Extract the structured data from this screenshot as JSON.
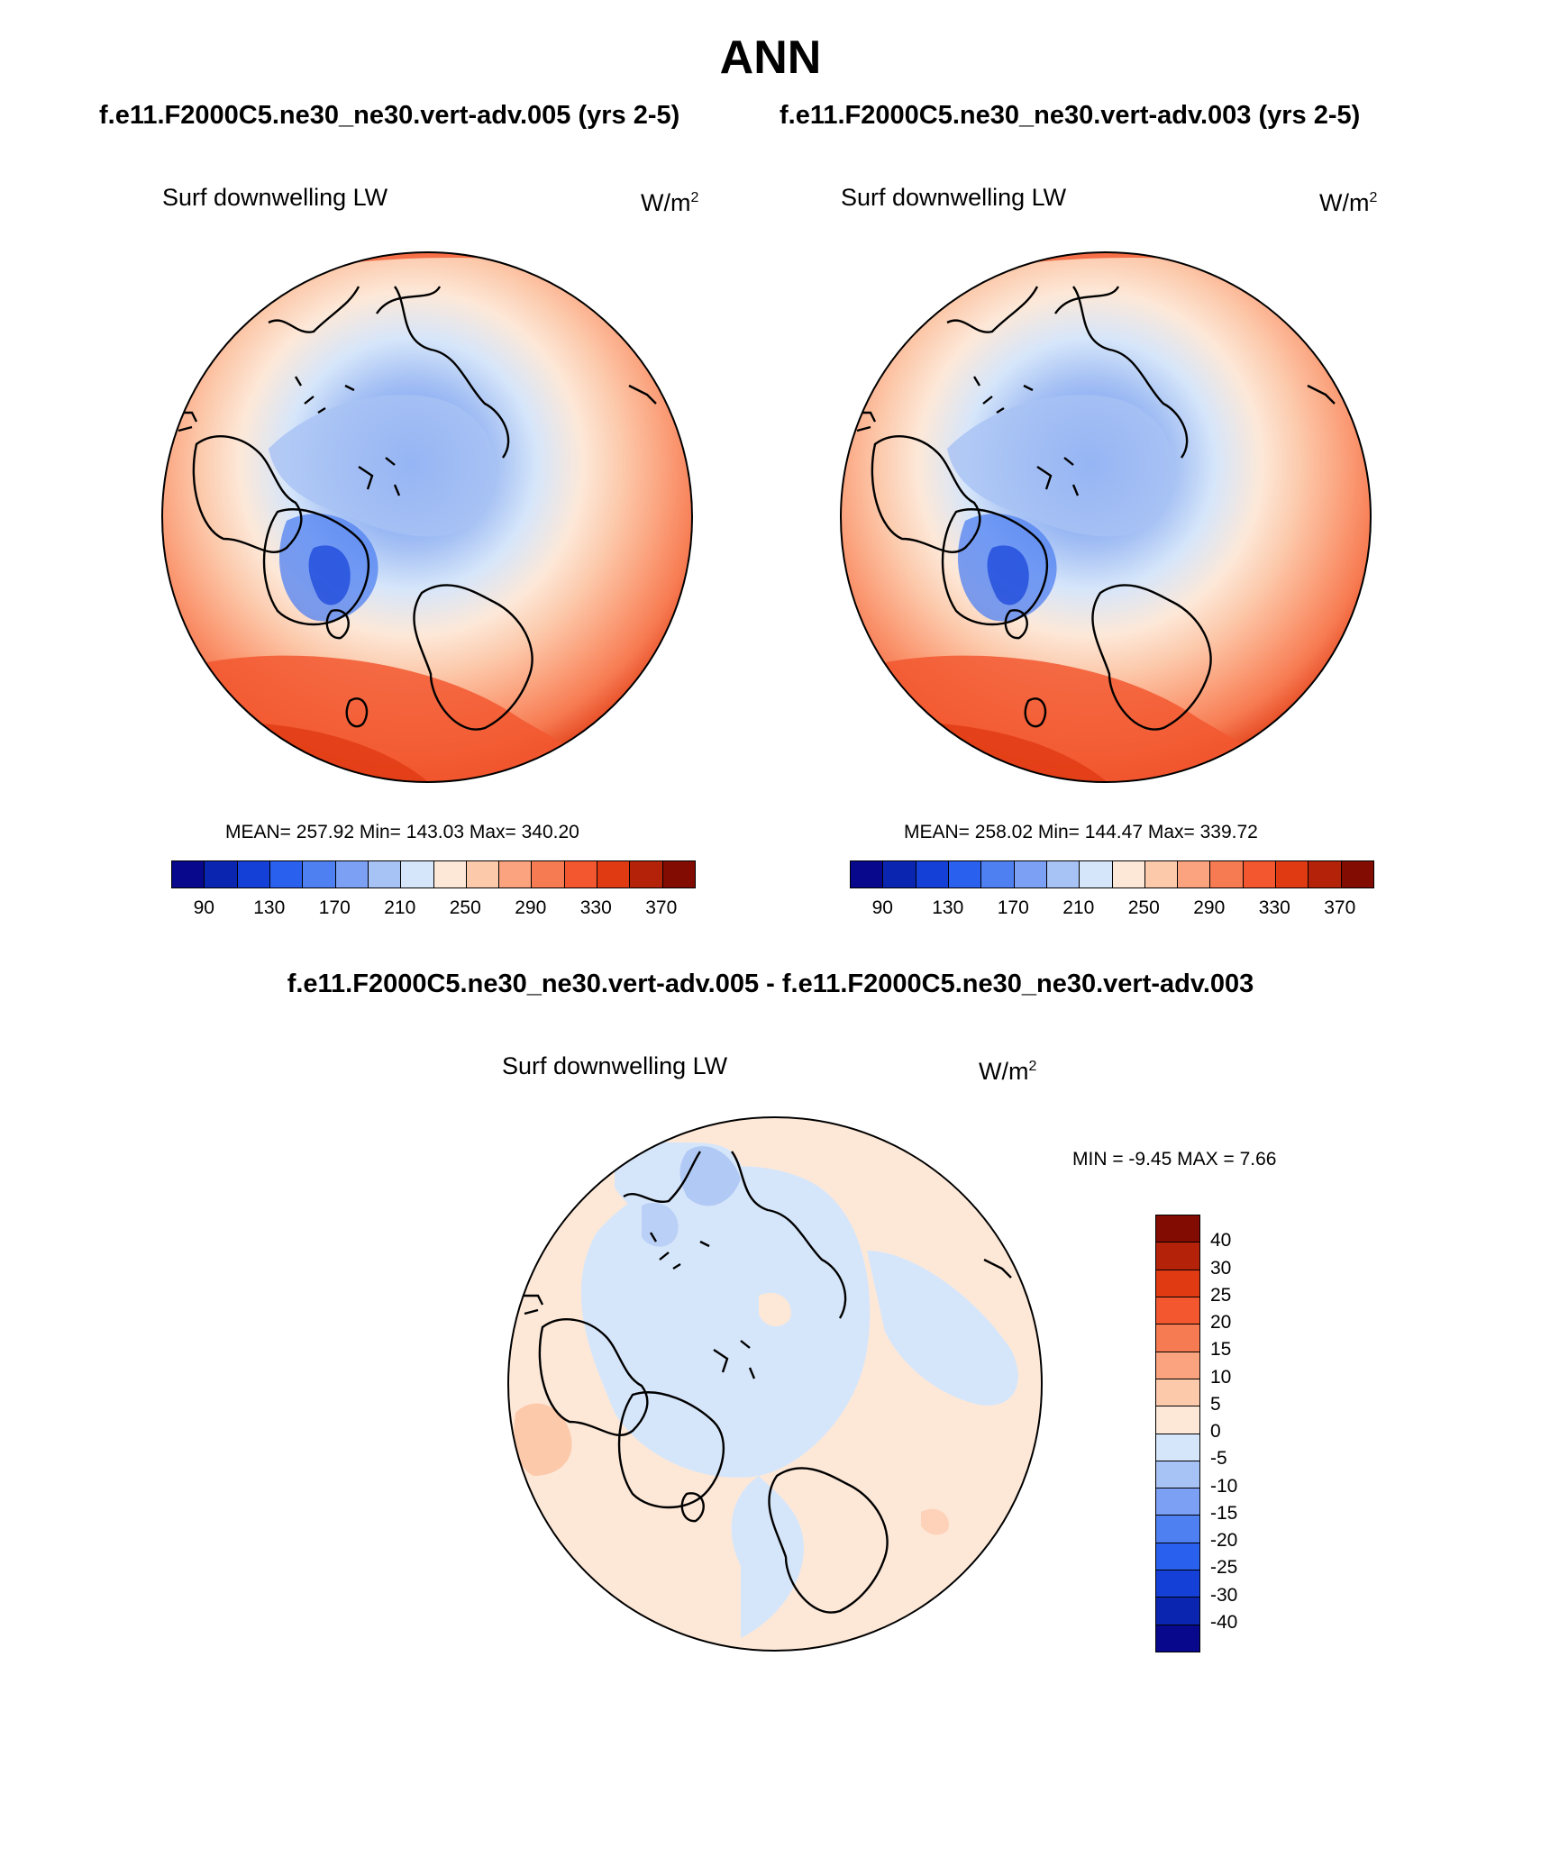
{
  "title": "ANN",
  "case_titles": [
    "f.e11.F2000C5.ne30_ne30.vert-adv.005 (yrs 2-5)",
    "f.e11.F2000C5.ne30_ne30.vert-adv.003 (yrs 2-5)"
  ],
  "diff_title": "f.e11.F2000C5.ne30_ne30.vert-adv.005 - f.e11.F2000C5.ne30_ne30.vert-adv.003",
  "panels": [
    {
      "variable": "Surf downwelling LW",
      "units_base": "W/m",
      "units_exp": "2",
      "stats": "MEAN= 257.92  Min= 143.03  Max= 340.20"
    },
    {
      "variable": "Surf downwelling LW",
      "units_base": "W/m",
      "units_exp": "2",
      "stats": "MEAN= 258.02  Min= 144.47  Max= 339.72"
    }
  ],
  "diff_panel": {
    "variable": "Surf downwelling LW",
    "units_base": "W/m",
    "units_exp": "2",
    "stats": "MIN =  -9.45 MAX =   7.66"
  },
  "colorbar_abs": {
    "colors": [
      "#08088c",
      "#0a26b0",
      "#1440d8",
      "#2a60ee",
      "#4f80f2",
      "#7ba0f4",
      "#a7c2f4",
      "#d6e6fa",
      "#fde8d8",
      "#fcc9ab",
      "#fba37e",
      "#f77b52",
      "#f2572f",
      "#e03a13",
      "#b42309",
      "#820c02"
    ],
    "tick_labels": [
      "90",
      "130",
      "170",
      "210",
      "250",
      "290",
      "330",
      "370"
    ]
  },
  "colorbar_diff": {
    "colors": [
      "#820c02",
      "#b42309",
      "#e03a13",
      "#f2572f",
      "#f77b52",
      "#fba37e",
      "#fcc9ab",
      "#fde8d8",
      "#d6e6fa",
      "#a7c2f4",
      "#7ba0f4",
      "#4f80f2",
      "#2a60ee",
      "#1440d8",
      "#0a26b0",
      "#08088c"
    ],
    "tick_labels": [
      "40",
      "30",
      "25",
      "20",
      "15",
      "10",
      "5",
      "0",
      "-5",
      "-10",
      "-15",
      "-20",
      "-25",
      "-30",
      "-40"
    ]
  }
}
